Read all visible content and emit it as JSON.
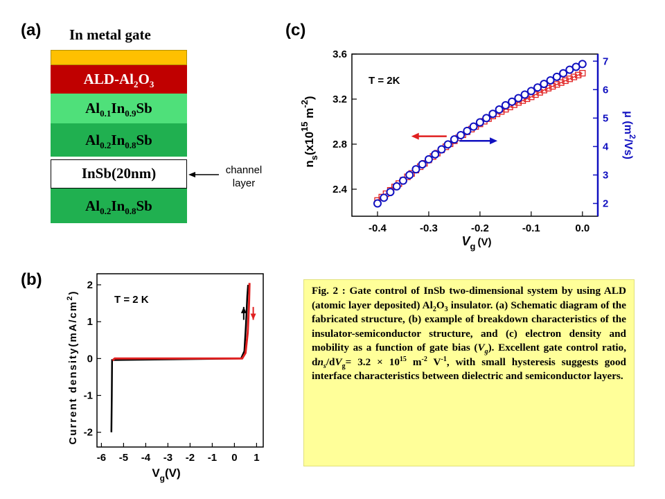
{
  "panel_a": {
    "label": "(a)",
    "gate_label": "In metal gate",
    "layers": [
      {
        "name": "gate",
        "color": "#ffc000"
      },
      {
        "name": "ALD-Al2O3",
        "base": "ALD-Al",
        "sub": "2",
        "tail": "O",
        "sub2": "3",
        "color": "#c00000",
        "text_color": "#ffffff"
      },
      {
        "name": "Al0.1In0.9Sb",
        "color": "#4fe07a"
      },
      {
        "name": "Al0.2In0.8Sb",
        "color": "#20b050"
      },
      {
        "name": "InSb(20nm)",
        "text": "InSb(20nm)",
        "color": "#ffffff"
      },
      {
        "name": "Al0.2In0.8Sb",
        "color": "#20b050"
      }
    ],
    "channel_label_1": "channel",
    "channel_label_2": "layer"
  },
  "panel_b": {
    "label": "(b)",
    "annotation": "T = 2 K"
  },
  "panel_c": {
    "label": "(c)",
    "annotation": "T = 2K"
  },
  "caption": {
    "p1": "Fig. 2 : Gate control of InSb two-dimensional system by using ALD (atomic layer deposited) Al",
    "p1_sub1": "2",
    "p1_mid": "O",
    "p1_sub2": "3",
    "p2": " insulator. (a) Schematic diagram of the fabricated structure, (b) example of breakdown characteristics of the insulator-semiconductor structure, and (c) electron density and mobility as a function of gate bias (",
    "p2_var": "V",
    "p2_var_sub": "g",
    "p3": "). Excellent gate control ratio, d",
    "p3_n": "n",
    "p3_s": "s",
    "p3_slash": "/d",
    "p3_V": "V",
    "p3_g": "g",
    "p3_eq": "= 3.2 × 10",
    "p3_15": "15",
    "p3_m": " m",
    "p3_m2": "-2",
    "p3_V2": " V",
    "p3_m1": "-1",
    "p4": ", with small hysteresis suggests good interface characteristics between dielectric and semiconductor layers."
  },
  "chart_data": [
    {
      "panel": "b",
      "type": "line",
      "xlabel_main": "V",
      "xlabel_sub": "g",
      "xlabel_unit": "(V)",
      "ylabel": "Current density(mA/cm",
      "ylabel_sup": "2",
      "ylabel_close": ")",
      "xlim": [
        -6.2,
        1.3
      ],
      "ylim": [
        -2.4,
        2.3
      ],
      "x_ticks": [
        -6,
        -5,
        -4,
        -3,
        -2,
        -1,
        0,
        1
      ],
      "x_tick_labels": [
        "-6",
        "-5",
        "-4",
        "-3",
        "-2",
        "-1",
        "0",
        "1"
      ],
      "y_ticks": [
        -2,
        -1,
        0,
        1,
        2
      ],
      "y_tick_labels": [
        "-2",
        "-1",
        "0",
        "1",
        "2"
      ],
      "annotation": "T = 2 K",
      "series": [
        {
          "color": "#000000",
          "points": [
            [
              -5.55,
              -2.0
            ],
            [
              -5.53,
              -1.0
            ],
            [
              -5.52,
              -0.04
            ],
            [
              0.3,
              0.0
            ],
            [
              0.45,
              0.2
            ],
            [
              0.52,
              0.9
            ],
            [
              0.58,
              1.7
            ],
            [
              0.62,
              2.0
            ]
          ]
        },
        {
          "color": "#e02020",
          "points": [
            [
              -5.5,
              -0.05
            ],
            [
              -5.4,
              0.0
            ],
            [
              0.35,
              0.0
            ],
            [
              0.5,
              0.15
            ],
            [
              0.6,
              0.7
            ],
            [
              0.66,
              1.5
            ],
            [
              0.68,
              2.05
            ]
          ]
        }
      ],
      "arrows": [
        {
          "color": "#000000",
          "x": 0.42,
          "y_from": 1.05,
          "y_to": 1.4
        },
        {
          "color": "#e02020",
          "x": 0.85,
          "y_from": 1.4,
          "y_to": 1.05
        }
      ]
    },
    {
      "panel": "c",
      "type": "line",
      "x_label_main": "V",
      "x_label_sub": "g",
      "x_label_unit": "(V)",
      "xlim": [
        -0.45,
        0.03
      ],
      "x_ticks": [
        -0.4,
        -0.3,
        -0.2,
        -0.1,
        0.0
      ],
      "x_tick_labels": [
        "-0.4",
        "-0.3",
        "-0.2",
        "-0.1",
        "0.0"
      ],
      "y_left_label_main": "n",
      "y_left_label_sub": "s",
      "y_left_label_mid": "(x10",
      "y_left_label_sup": "15",
      "y_left_label_tail": " m",
      "y_left_label_sup2": "-2",
      "y_left_label_close": ")",
      "y_left_lim": [
        2.16,
        3.6
      ],
      "y_left_ticks": [
        2.4,
        2.8,
        3.2,
        3.6
      ],
      "y_left_tick_labels": [
        "2.4",
        "2.8",
        "3.2",
        "3.6"
      ],
      "y_right_label_main": "μ (m",
      "y_right_label_sup": "2",
      "y_right_label_tail": "/Vs)",
      "y_right_lim": [
        1.55,
        7.25
      ],
      "y_right_ticks": [
        2,
        3,
        4,
        5,
        6,
        7
      ],
      "y_right_tick_labels": [
        "2",
        "3",
        "4",
        "5",
        "6",
        "7"
      ],
      "y_right_color": "#1010c0",
      "series": [
        {
          "name": "n_s",
          "axis": "left",
          "color": "#e02020",
          "marker": "square",
          "x": [
            -0.4,
            -0.375,
            -0.35,
            -0.325,
            -0.3,
            -0.275,
            -0.25,
            -0.225,
            -0.2,
            -0.175,
            -0.15,
            -0.125,
            -0.1,
            -0.075,
            -0.05,
            -0.025,
            0.0
          ],
          "y": [
            2.3,
            2.39,
            2.48,
            2.57,
            2.66,
            2.75,
            2.83,
            2.91,
            2.98,
            3.05,
            3.11,
            3.17,
            3.22,
            3.28,
            3.33,
            3.38,
            3.43
          ]
        },
        {
          "name": "μ",
          "axis": "right",
          "color": "#1010c0",
          "marker": "circle",
          "x": [
            -0.4,
            -0.375,
            -0.35,
            -0.325,
            -0.3,
            -0.275,
            -0.25,
            -0.225,
            -0.2,
            -0.175,
            -0.15,
            -0.125,
            -0.1,
            -0.075,
            -0.05,
            -0.025,
            0.0
          ],
          "y": [
            2.0,
            2.4,
            2.8,
            3.2,
            3.55,
            3.9,
            4.25,
            4.55,
            4.85,
            5.15,
            5.45,
            5.7,
            5.95,
            6.2,
            6.45,
            6.7,
            6.9
          ]
        }
      ],
      "annotation": "T = 2K",
      "arrows": [
        {
          "color": "#e02020",
          "direction": "left",
          "x_from": -0.265,
          "x_to": -0.33,
          "y_left": 2.87
        },
        {
          "color": "#1010c0",
          "direction": "right",
          "x_from": -0.24,
          "x_to": -0.17,
          "y_right": 4.2
        }
      ]
    }
  ]
}
